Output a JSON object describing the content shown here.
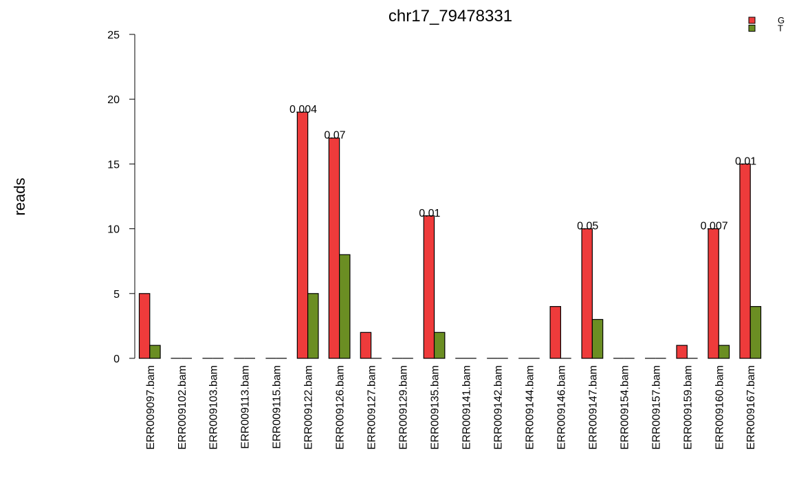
{
  "chart_data": {
    "type": "bar",
    "title": "chr17_79478331",
    "xlabel": "",
    "ylabel": "reads",
    "ylim": [
      0,
      25
    ],
    "yticks": [
      "0",
      "5",
      "10",
      "15",
      "20",
      "25"
    ],
    "grid": false,
    "legend_position": "top-right",
    "categories": [
      "ERR009097.bam",
      "ERR009102.bam",
      "ERR009103.bam",
      "ERR009113.bam",
      "ERR009115.bam",
      "ERR009122.bam",
      "ERR009126.bam",
      "ERR009127.bam",
      "ERR009129.bam",
      "ERR009135.bam",
      "ERR009141.bam",
      "ERR009142.bam",
      "ERR009144.bam",
      "ERR009146.bam",
      "ERR009147.bam",
      "ERR009154.bam",
      "ERR009157.bam",
      "ERR009159.bam",
      "ERR009160.bam",
      "ERR009167.bam"
    ],
    "series": [
      {
        "name": "G",
        "color": "#ee3b3b",
        "values": [
          5,
          0,
          0,
          0,
          0,
          19,
          17,
          2,
          0,
          11,
          0,
          0,
          0,
          4,
          10,
          0,
          0,
          1,
          10,
          15
        ]
      },
      {
        "name": "T",
        "color": "#6b8e23",
        "values": [
          1,
          0,
          0,
          0,
          0,
          5,
          8,
          0,
          0,
          2,
          0,
          0,
          0,
          0,
          3,
          0,
          0,
          0,
          1,
          4
        ]
      }
    ],
    "annotations": [
      {
        "category": "ERR009122.bam",
        "text": "0.004",
        "y": 19
      },
      {
        "category": "ERR009126.bam",
        "text": "0.07",
        "y": 17
      },
      {
        "category": "ERR009135.bam",
        "text": "0.01",
        "y": 11
      },
      {
        "category": "ERR009147.bam",
        "text": "0.05",
        "y": 10
      },
      {
        "category": "ERR009160.bam",
        "text": "0.007",
        "y": 10
      },
      {
        "category": "ERR009167.bam",
        "text": "0.01",
        "y": 15
      }
    ]
  }
}
